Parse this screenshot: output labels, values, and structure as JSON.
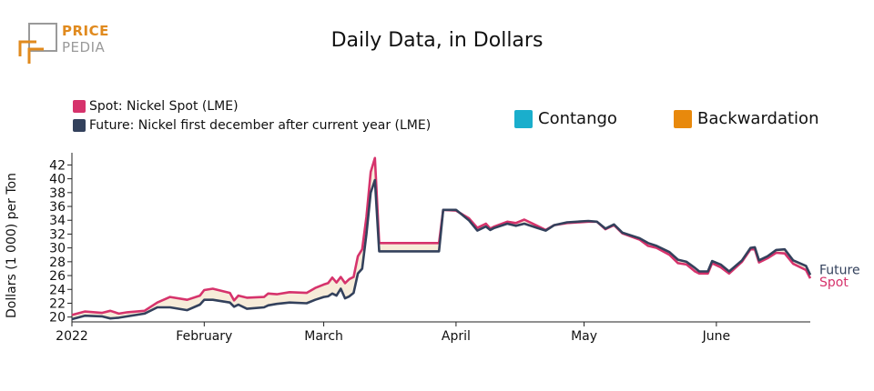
{
  "logo": {
    "line1": "PRICE",
    "line2": "PEDIA"
  },
  "title": "Daily Data, in Dollars",
  "legend": {
    "spot": "Spot: Nickel Spot (LME)",
    "future": "Future: Nickel first december after current year (LME)",
    "contango": "Contango",
    "backwardation": "Backwardation"
  },
  "colors": {
    "spot": "#d6336c",
    "future": "#33415c",
    "contango": "#1aaecc",
    "backwardation": "#e8890c",
    "fill_backwardation": "#f7ecd9",
    "brand_orange": "#e08a1e",
    "brand_gray": "#9a9a9a"
  },
  "chart_data": {
    "type": "line",
    "ylabel": "Dollars (1 000) per Ton",
    "xlabel": "",
    "ylim": [
      19.3,
      43.5
    ],
    "yticks": [
      20,
      22,
      24,
      26,
      28,
      30,
      32,
      34,
      36,
      38,
      40,
      42
    ],
    "xlim": [
      "2022-01-01",
      "2022-06-15"
    ],
    "xticks": [
      {
        "date": "2022-01-01",
        "label": "2022"
      },
      {
        "date": "2022-02-01",
        "label": "February"
      },
      {
        "date": "2022-03-01",
        "label": "March"
      },
      {
        "date": "2022-04-01",
        "label": "April"
      },
      {
        "date": "2022-05-01",
        "label": "May"
      },
      {
        "date": "2022-06-01",
        "label": "June"
      }
    ],
    "line_end_labels": [
      "Future",
      "Spot"
    ],
    "series": [
      {
        "name": "Spot",
        "points": [
          [
            "2022-01-01",
            20.3
          ],
          [
            "2022-01-04",
            20.8
          ],
          [
            "2022-01-08",
            20.6
          ],
          [
            "2022-01-10",
            20.9
          ],
          [
            "2022-01-12",
            20.5
          ],
          [
            "2022-01-14",
            20.7
          ],
          [
            "2022-01-18",
            20.9
          ],
          [
            "2022-01-21",
            22.1
          ],
          [
            "2022-01-24",
            22.9
          ],
          [
            "2022-01-28",
            22.5
          ],
          [
            "2022-01-31",
            23.1
          ],
          [
            "2022-02-01",
            23.9
          ],
          [
            "2022-02-03",
            24.1
          ],
          [
            "2022-02-07",
            23.5
          ],
          [
            "2022-02-08",
            22.4
          ],
          [
            "2022-02-09",
            23.1
          ],
          [
            "2022-02-11",
            22.8
          ],
          [
            "2022-02-15",
            22.9
          ],
          [
            "2022-02-16",
            23.4
          ],
          [
            "2022-02-18",
            23.3
          ],
          [
            "2022-02-21",
            23.6
          ],
          [
            "2022-02-25",
            23.5
          ],
          [
            "2022-02-27",
            24.2
          ],
          [
            "2022-03-01",
            24.7
          ],
          [
            "2022-03-02",
            24.9
          ],
          [
            "2022-03-03",
            25.7
          ],
          [
            "2022-03-04",
            25.0
          ],
          [
            "2022-03-05",
            25.8
          ],
          [
            "2022-03-06",
            24.9
          ],
          [
            "2022-03-07",
            25.5
          ],
          [
            "2022-03-08",
            25.8
          ],
          [
            "2022-03-09",
            28.8
          ],
          [
            "2022-03-10",
            29.8
          ],
          [
            "2022-03-11",
            34.5
          ],
          [
            "2022-03-12",
            41.0
          ],
          [
            "2022-03-13",
            43.0
          ],
          [
            "2022-03-14",
            30.7
          ],
          [
            "2022-03-28",
            30.7
          ],
          [
            "2022-03-29",
            35.5
          ],
          [
            "2022-04-01",
            35.4
          ],
          [
            "2022-04-04",
            34.3
          ],
          [
            "2022-04-06",
            32.9
          ],
          [
            "2022-04-08",
            33.5
          ],
          [
            "2022-04-09",
            32.8
          ],
          [
            "2022-04-10",
            33.1
          ],
          [
            "2022-04-13",
            33.8
          ],
          [
            "2022-04-15",
            33.6
          ],
          [
            "2022-04-17",
            34.1
          ],
          [
            "2022-04-20",
            33.2
          ],
          [
            "2022-04-22",
            32.6
          ],
          [
            "2022-04-24",
            33.3
          ],
          [
            "2022-04-27",
            33.6
          ],
          [
            "2022-05-02",
            33.8
          ],
          [
            "2022-05-04",
            33.8
          ],
          [
            "2022-05-06",
            32.7
          ],
          [
            "2022-05-08",
            33.3
          ],
          [
            "2022-05-10",
            32.1
          ],
          [
            "2022-05-14",
            31.2
          ],
          [
            "2022-05-16",
            30.3
          ],
          [
            "2022-05-18",
            30.0
          ],
          [
            "2022-05-21",
            29.0
          ],
          [
            "2022-05-23",
            27.8
          ],
          [
            "2022-05-25",
            27.6
          ],
          [
            "2022-05-27",
            26.6
          ],
          [
            "2022-05-28",
            26.3
          ],
          [
            "2022-05-30",
            26.3
          ],
          [
            "2022-05-31",
            27.8
          ],
          [
            "2022-06-02",
            27.2
          ],
          [
            "2022-06-04",
            26.3
          ],
          [
            "2022-06-07",
            28.0
          ],
          [
            "2022-06-09",
            29.8
          ],
          [
            "2022-06-10",
            29.8
          ],
          [
            "2022-06-11",
            27.9
          ],
          [
            "2022-06-13",
            28.5
          ],
          [
            "2022-06-15",
            29.3
          ],
          [
            "2022-06-17",
            29.2
          ],
          [
            "2022-06-19",
            27.7
          ],
          [
            "2022-06-22",
            26.8
          ],
          [
            "2022-06-23",
            25.6
          ]
        ]
      },
      {
        "name": "Future",
        "points": [
          [
            "2022-01-01",
            19.7
          ],
          [
            "2022-01-04",
            20.2
          ],
          [
            "2022-01-08",
            20.1
          ],
          [
            "2022-01-10",
            19.8
          ],
          [
            "2022-01-12",
            19.9
          ],
          [
            "2022-01-14",
            20.1
          ],
          [
            "2022-01-18",
            20.5
          ],
          [
            "2022-01-21",
            21.4
          ],
          [
            "2022-01-24",
            21.4
          ],
          [
            "2022-01-28",
            21.0
          ],
          [
            "2022-01-31",
            21.8
          ],
          [
            "2022-02-01",
            22.5
          ],
          [
            "2022-02-03",
            22.5
          ],
          [
            "2022-02-07",
            22.1
          ],
          [
            "2022-02-08",
            21.5
          ],
          [
            "2022-02-09",
            21.8
          ],
          [
            "2022-02-11",
            21.2
          ],
          [
            "2022-02-15",
            21.4
          ],
          [
            "2022-02-16",
            21.7
          ],
          [
            "2022-02-18",
            21.9
          ],
          [
            "2022-02-21",
            22.1
          ],
          [
            "2022-02-25",
            22.0
          ],
          [
            "2022-02-27",
            22.5
          ],
          [
            "2022-03-01",
            22.9
          ],
          [
            "2022-03-02",
            23.0
          ],
          [
            "2022-03-03",
            23.4
          ],
          [
            "2022-03-04",
            23.1
          ],
          [
            "2022-03-05",
            24.1
          ],
          [
            "2022-03-06",
            22.7
          ],
          [
            "2022-03-07",
            23.0
          ],
          [
            "2022-03-08",
            23.5
          ],
          [
            "2022-03-09",
            26.3
          ],
          [
            "2022-03-10",
            27.0
          ],
          [
            "2022-03-11",
            32.0
          ],
          [
            "2022-03-12",
            38.0
          ],
          [
            "2022-03-13",
            39.8
          ],
          [
            "2022-03-14",
            29.5
          ],
          [
            "2022-03-28",
            29.5
          ],
          [
            "2022-03-29",
            35.5
          ],
          [
            "2022-04-01",
            35.5
          ],
          [
            "2022-04-04",
            34.0
          ],
          [
            "2022-04-06",
            32.5
          ],
          [
            "2022-04-08",
            33.1
          ],
          [
            "2022-04-09",
            32.6
          ],
          [
            "2022-04-10",
            32.9
          ],
          [
            "2022-04-13",
            33.5
          ],
          [
            "2022-04-15",
            33.2
          ],
          [
            "2022-04-17",
            33.5
          ],
          [
            "2022-04-20",
            32.9
          ],
          [
            "2022-04-22",
            32.5
          ],
          [
            "2022-04-24",
            33.3
          ],
          [
            "2022-04-27",
            33.7
          ],
          [
            "2022-05-02",
            33.9
          ],
          [
            "2022-05-04",
            33.8
          ],
          [
            "2022-05-06",
            32.8
          ],
          [
            "2022-05-08",
            33.4
          ],
          [
            "2022-05-10",
            32.2
          ],
          [
            "2022-05-14",
            31.4
          ],
          [
            "2022-05-16",
            30.7
          ],
          [
            "2022-05-18",
            30.3
          ],
          [
            "2022-05-21",
            29.4
          ],
          [
            "2022-05-23",
            28.3
          ],
          [
            "2022-05-25",
            28.0
          ],
          [
            "2022-05-27",
            27.1
          ],
          [
            "2022-05-28",
            26.6
          ],
          [
            "2022-05-30",
            26.6
          ],
          [
            "2022-05-31",
            28.1
          ],
          [
            "2022-06-02",
            27.6
          ],
          [
            "2022-06-04",
            26.6
          ],
          [
            "2022-06-07",
            28.2
          ],
          [
            "2022-06-09",
            30.0
          ],
          [
            "2022-06-10",
            30.1
          ],
          [
            "2022-06-11",
            28.2
          ],
          [
            "2022-06-13",
            28.8
          ],
          [
            "2022-06-15",
            29.7
          ],
          [
            "2022-06-17",
            29.8
          ],
          [
            "2022-06-19",
            28.2
          ],
          [
            "2022-06-22",
            27.4
          ],
          [
            "2022-06-23",
            26.1
          ]
        ]
      }
    ]
  }
}
